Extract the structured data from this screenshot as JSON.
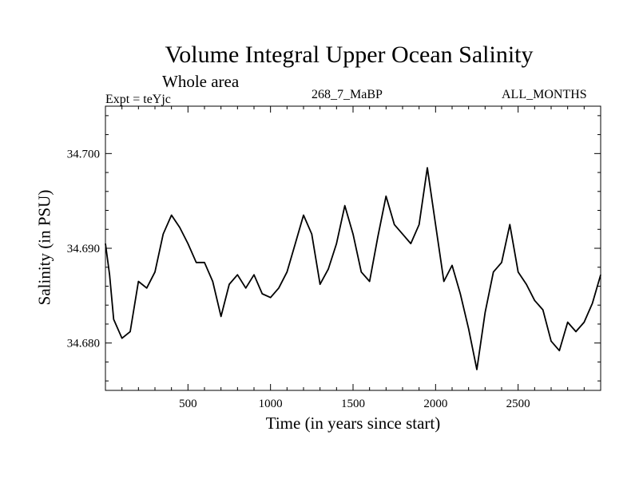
{
  "header": {
    "title": "Volume Integral Upper Ocean Salinity",
    "subtitle": "Whole area",
    "expt": "Expt = teYjc",
    "run_id": "268_7_MaBP",
    "months": "ALL_MONTHS"
  },
  "chart_data": {
    "type": "line",
    "title": "Volume Integral Upper Ocean Salinity",
    "xlabel": "Time (in years since start)",
    "ylabel": "Salinity (in PSU)",
    "xlim": [
      0,
      3000
    ],
    "ylim": [
      34.675,
      34.705
    ],
    "xticks": [
      500,
      1000,
      1500,
      2000,
      2500
    ],
    "xtick_labels": [
      "500",
      "1000",
      "1500",
      "2000",
      "2500"
    ],
    "yticks": [
      34.68,
      34.69,
      34.7
    ],
    "ytick_labels": [
      "34.680",
      "34.690",
      "34.700"
    ],
    "grid": false,
    "series": [
      {
        "name": "Salinity",
        "color": "#000000",
        "x": [
          0,
          25,
          50,
          100,
          150,
          200,
          250,
          300,
          350,
          400,
          450,
          500,
          550,
          600,
          650,
          700,
          750,
          800,
          850,
          900,
          950,
          1000,
          1050,
          1100,
          1150,
          1200,
          1250,
          1300,
          1350,
          1400,
          1450,
          1500,
          1550,
          1600,
          1650,
          1700,
          1750,
          1800,
          1850,
          1900,
          1950,
          2000,
          2050,
          2100,
          2150,
          2200,
          2250,
          2300,
          2350,
          2400,
          2450,
          2500,
          2550,
          2600,
          2650,
          2700,
          2750,
          2800,
          2850,
          2900,
          2950,
          3000
        ],
        "y": [
          34.6905,
          34.6872,
          34.6825,
          34.6805,
          34.6812,
          34.6865,
          34.6858,
          34.6875,
          34.6915,
          34.6935,
          34.6922,
          34.6905,
          34.6885,
          34.6885,
          34.6865,
          34.6828,
          34.6862,
          34.6872,
          34.6858,
          34.6872,
          34.6852,
          34.6848,
          34.6858,
          34.6875,
          34.6905,
          34.6935,
          34.6915,
          34.6862,
          34.6878,
          34.6905,
          34.6945,
          34.6915,
          34.6875,
          34.6865,
          34.6912,
          34.6955,
          34.6925,
          34.6915,
          34.6905,
          34.6925,
          34.6985,
          34.6925,
          34.6865,
          34.6882,
          34.6852,
          34.6815,
          34.6772,
          34.6832,
          34.6875,
          34.6885,
          34.6925,
          34.6875,
          34.6862,
          34.6845,
          34.6835,
          34.6802,
          34.6792,
          34.6822,
          34.6812,
          34.6822,
          34.6842,
          34.6872
        ]
      }
    ]
  }
}
